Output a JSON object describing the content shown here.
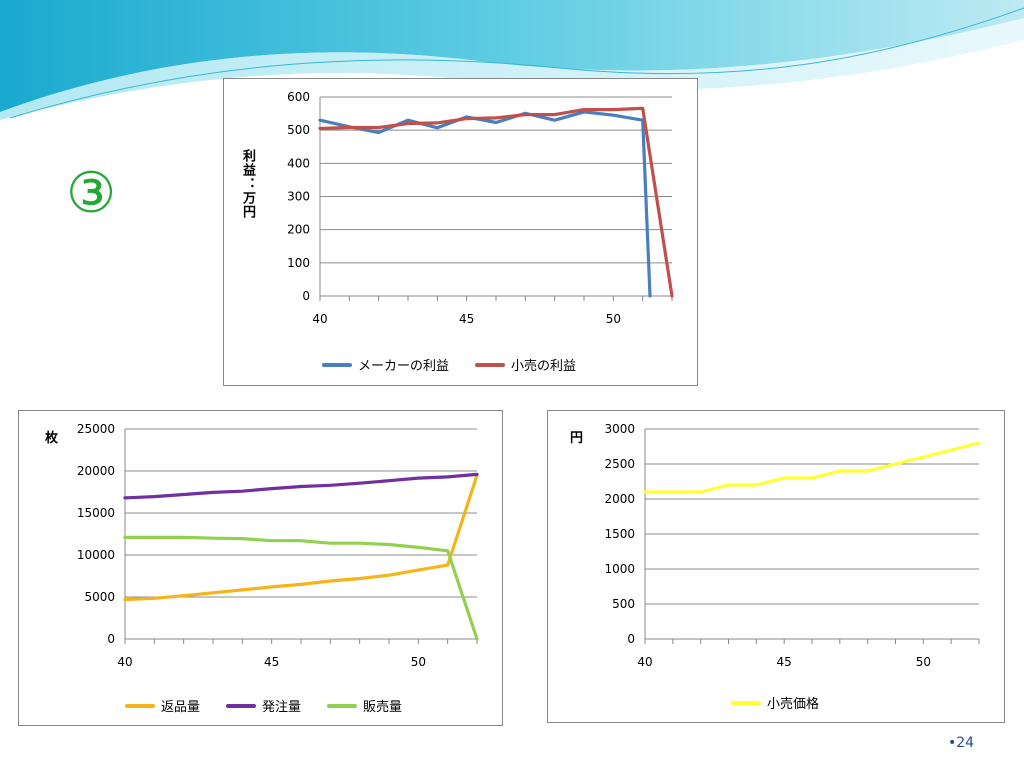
{
  "slide": {
    "marker": "③",
    "page_number": "•24"
  },
  "colors": {
    "accent_wave": "#2fb9d6",
    "maker": "#4a7fbf",
    "retail": "#c0504d",
    "returns": "#f4b41a",
    "orders": "#7030a0",
    "sales": "#92d050",
    "price": "#ffff33"
  },
  "chart_data": [
    {
      "type": "line",
      "ylabel": "利益：万円",
      "xlim": [
        40,
        52
      ],
      "ylim": [
        0,
        600
      ],
      "xticks": [
        40,
        45,
        50
      ],
      "yticks": [
        0,
        100,
        200,
        300,
        400,
        500,
        600
      ],
      "grid": true,
      "legend": "bottom",
      "series": [
        {
          "name": "メーカーの利益",
          "color": "#4a7fbf",
          "x": [
            40,
            41,
            42,
            43,
            44,
            45,
            46,
            47,
            48,
            49,
            50,
            51,
            51.25
          ],
          "y": [
            530,
            510,
            493,
            530,
            507,
            540,
            523,
            551,
            530,
            555,
            545,
            530,
            0
          ]
        },
        {
          "name": "小売の利益",
          "color": "#c0504d",
          "x": [
            40,
            41,
            42,
            43,
            44,
            45,
            46,
            47,
            48,
            49,
            50,
            51,
            52
          ],
          "y": [
            505,
            508,
            508,
            520,
            522,
            535,
            537,
            547,
            547,
            562,
            562,
            566,
            0
          ]
        }
      ]
    },
    {
      "type": "line",
      "ylabel": "枚",
      "xlim": [
        40,
        52
      ],
      "ylim": [
        0,
        25000
      ],
      "xticks": [
        40,
        45,
        50
      ],
      "yticks": [
        0,
        5000,
        10000,
        15000,
        20000,
        25000
      ],
      "grid": true,
      "legend": "bottom",
      "series": [
        {
          "name": "返品量",
          "color": "#f4b41a",
          "x": [
            40,
            41,
            42,
            43,
            44,
            45,
            46,
            47,
            48,
            49,
            50,
            51,
            52
          ],
          "y": [
            4700,
            4850,
            5150,
            5500,
            5850,
            6200,
            6500,
            6900,
            7200,
            7600,
            8200,
            8800,
            19500
          ]
        },
        {
          "name": "発注量",
          "color": "#7030a0",
          "x": [
            40,
            41,
            42,
            43,
            44,
            45,
            46,
            47,
            48,
            49,
            50,
            51,
            52
          ],
          "y": [
            16800,
            16950,
            17200,
            17450,
            17600,
            17900,
            18150,
            18300,
            18550,
            18850,
            19150,
            19300,
            19600
          ]
        },
        {
          "name": "販売量",
          "color": "#92d050",
          "x": [
            40,
            41,
            42,
            43,
            44,
            45,
            46,
            47,
            48,
            49,
            50,
            51,
            52
          ],
          "y": [
            12100,
            12100,
            12100,
            12000,
            11950,
            11700,
            11700,
            11400,
            11400,
            11250,
            10900,
            10500,
            0
          ]
        }
      ]
    },
    {
      "type": "line",
      "ylabel": "円",
      "xlim": [
        40,
        52
      ],
      "ylim": [
        0,
        3000
      ],
      "xticks": [
        40,
        45,
        50
      ],
      "yticks": [
        0,
        500,
        1000,
        1500,
        2000,
        2500,
        3000
      ],
      "grid": true,
      "legend": "bottom",
      "series": [
        {
          "name": "小売価格",
          "color": "#ffff33",
          "x": [
            40,
            41,
            42,
            43,
            44,
            45,
            46,
            47,
            48,
            49,
            50,
            51,
            52
          ],
          "y": [
            2100,
            2100,
            2100,
            2200,
            2200,
            2300,
            2300,
            2400,
            2400,
            2500,
            2600,
            2700,
            2800
          ]
        }
      ]
    }
  ]
}
